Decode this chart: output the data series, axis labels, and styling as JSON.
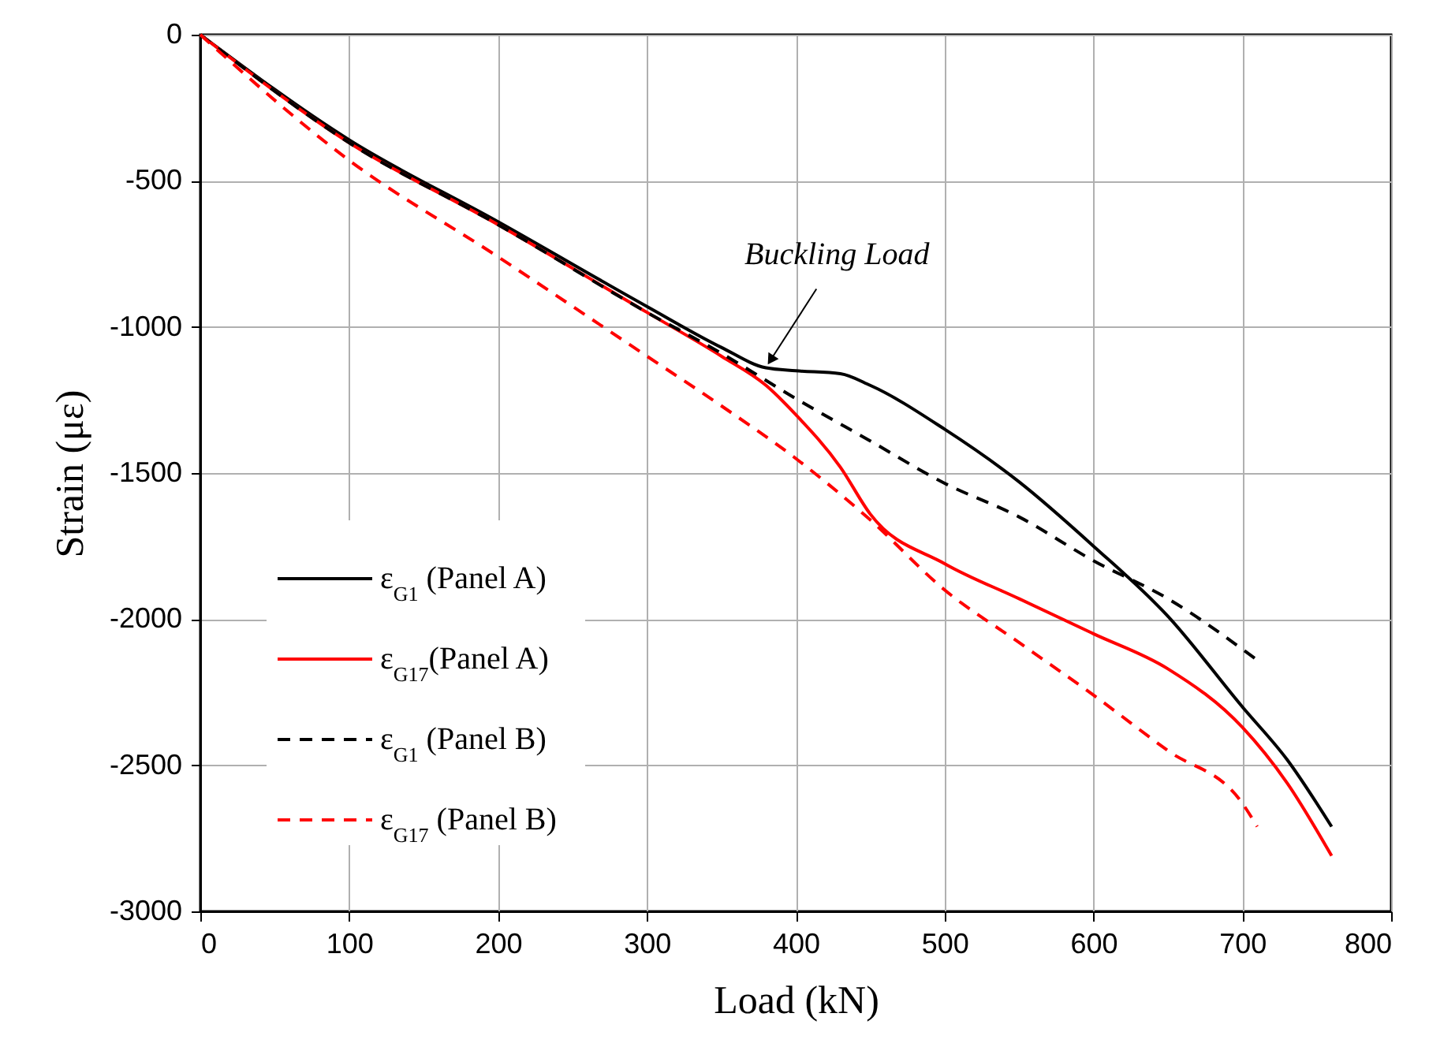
{
  "chart_data": {
    "type": "line",
    "xlabel": "Load (kN)",
    "ylabel": "Strain (με)",
    "xlim": [
      0,
      800
    ],
    "xticks": [
      0,
      100,
      200,
      300,
      400,
      500,
      600,
      700,
      800
    ],
    "ylim": [
      -3000,
      0
    ],
    "yticks": [
      -3000,
      -2500,
      -2000,
      -1500,
      -1000,
      -500,
      0
    ],
    "grid": true,
    "legend": "bottom left",
    "marker": "none",
    "x": [
      0,
      100,
      200,
      300,
      350,
      380,
      400,
      430,
      450,
      500,
      550,
      600,
      650,
      700,
      730,
      760
    ],
    "series": [
      {
        "name": "ε$_{G1}$ (Panel A)",
        "color": "#000000",
        "line_style": "solid",
        "values": [
          0,
          -360,
          -640,
          -930,
          -1070,
          -1140,
          -1150,
          -1160,
          -1200,
          -1350,
          -1530,
          -1750,
          -1990,
          -2300,
          -2480,
          -2710
        ]
      },
      {
        "name": "ε$_{G17}$(Panel A)",
        "color": "#ff0000",
        "line_style": "solid",
        "values": [
          0,
          -370,
          -650,
          -950,
          -1100,
          -1200,
          -1300,
          -1480,
          -1640,
          -1810,
          -1930,
          -2050,
          -2170,
          -2370,
          -2560,
          -2810
        ]
      },
      {
        "name": "ε$_{G1}$ (Panel B)",
        "color": "#000000",
        "line_style": "dashed",
        "x": [
          0,
          100,
          200,
          300,
          350,
          400,
          450,
          500,
          550,
          600,
          650,
          710
        ],
        "values": [
          0,
          -370,
          -650,
          -950,
          -1090,
          -1245,
          -1390,
          -1535,
          -1650,
          -1800,
          -1930,
          -2140
        ]
      },
      {
        "name": "ε$_{G17}$ (Panel B)",
        "color": "#ff0000",
        "line_style": "dashed",
        "x": [
          0,
          100,
          200,
          300,
          350,
          400,
          450,
          500,
          550,
          600,
          650,
          700,
          710
        ],
        "values": [
          0,
          -430,
          -760,
          -1100,
          -1270,
          -1450,
          -1660,
          -1900,
          -2080,
          -2260,
          -2450,
          -2630,
          -2710
        ]
      }
    ],
    "annotations": [
      {
        "text": "Buckling Load",
        "x": 380,
        "y": -1140
      }
    ]
  }
}
